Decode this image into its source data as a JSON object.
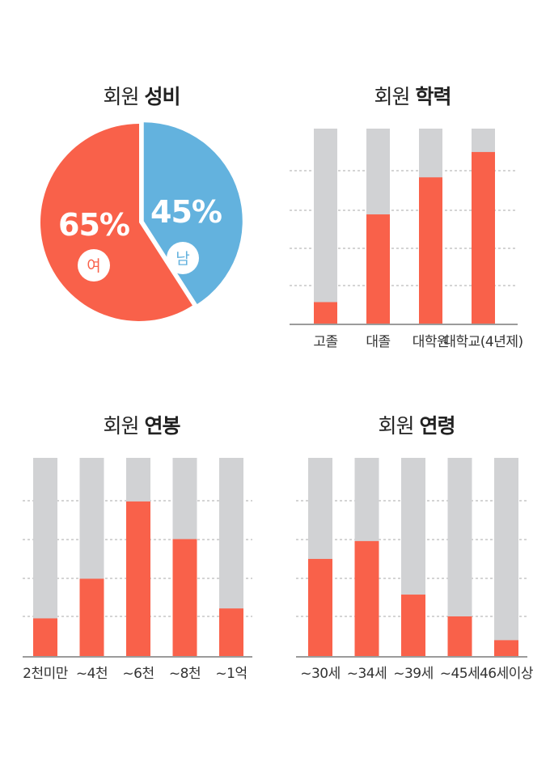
{
  "colors": {
    "accent": "#f9614a",
    "blue": "#63b2de",
    "track": "#d1d2d4",
    "grid": "#a9a9a9",
    "axis": "#9b9b9b"
  },
  "panels": {
    "gender": {
      "title_light": "회원",
      "title_bold": "성비"
    },
    "education": {
      "title_light": "회원",
      "title_bold": "학력"
    },
    "salary": {
      "title_light": "회원",
      "title_bold": "연봉"
    },
    "age": {
      "title_light": "회원",
      "title_bold": "연령"
    }
  },
  "chart_data": [
    {
      "type": "pie",
      "slices": [
        {
          "label": "여",
          "value": 65,
          "value_label": "65%",
          "color": "#f9614a"
        },
        {
          "label": "남",
          "value": 45,
          "value_label": "45%",
          "color": "#63b2de"
        }
      ]
    },
    {
      "type": "bar",
      "categories": [
        "고졸",
        "대졸",
        "대학원",
        "대학교(4년제)"
      ],
      "values": [
        11,
        56,
        75,
        88
      ],
      "ylim": [
        0,
        100
      ],
      "grid": true
    },
    {
      "type": "bar",
      "categories": [
        "2천미만",
        "~4천",
        "~6천",
        "~8천",
        "~1억"
      ],
      "values": [
        19,
        39,
        78,
        59,
        24
      ],
      "ylim": [
        0,
        100
      ],
      "grid": true
    },
    {
      "type": "bar",
      "categories": [
        "~30세",
        "~34세",
        "~39세",
        "~45세",
        "46세이상"
      ],
      "values": [
        49,
        58,
        31,
        20,
        8
      ],
      "ylim": [
        0,
        100
      ],
      "grid": true
    }
  ]
}
